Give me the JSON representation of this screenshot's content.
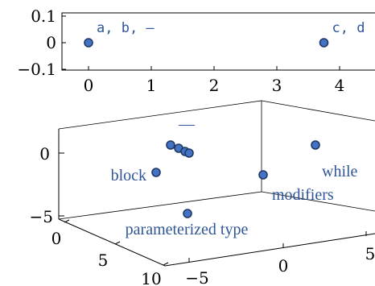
{
  "chart_data": [
    {
      "type": "scatter",
      "xlim": [
        -0.3,
        4.3
      ],
      "ylim": [
        -0.1,
        0.1
      ],
      "x_ticks": [
        "0",
        "1",
        "2",
        "3",
        "4"
      ],
      "y_ticks": [
        "0.1",
        "0",
        "−0.1"
      ],
      "points": [
        {
          "x": 0,
          "y": 0,
          "label": "a, b, —"
        },
        {
          "x": 3.75,
          "y": 0,
          "label": "c, d"
        }
      ]
    },
    {
      "type": "scatter",
      "projection": "3d",
      "z_ticks": [
        "0",
        "−5"
      ],
      "x_ticks": [
        "0",
        "5",
        "10"
      ],
      "y_ticks": [
        "−5",
        "0",
        "5"
      ],
      "labels": [
        "—",
        "block",
        "while",
        "modifiers",
        "parameterized type"
      ],
      "points": [
        {
          "label": "—"
        },
        {
          "label": ""
        },
        {
          "label": ""
        },
        {
          "label": ""
        },
        {
          "label": "block"
        },
        {
          "label": "while"
        },
        {
          "label": "modifiers"
        },
        {
          "label": "parameterized type"
        }
      ]
    }
  ]
}
